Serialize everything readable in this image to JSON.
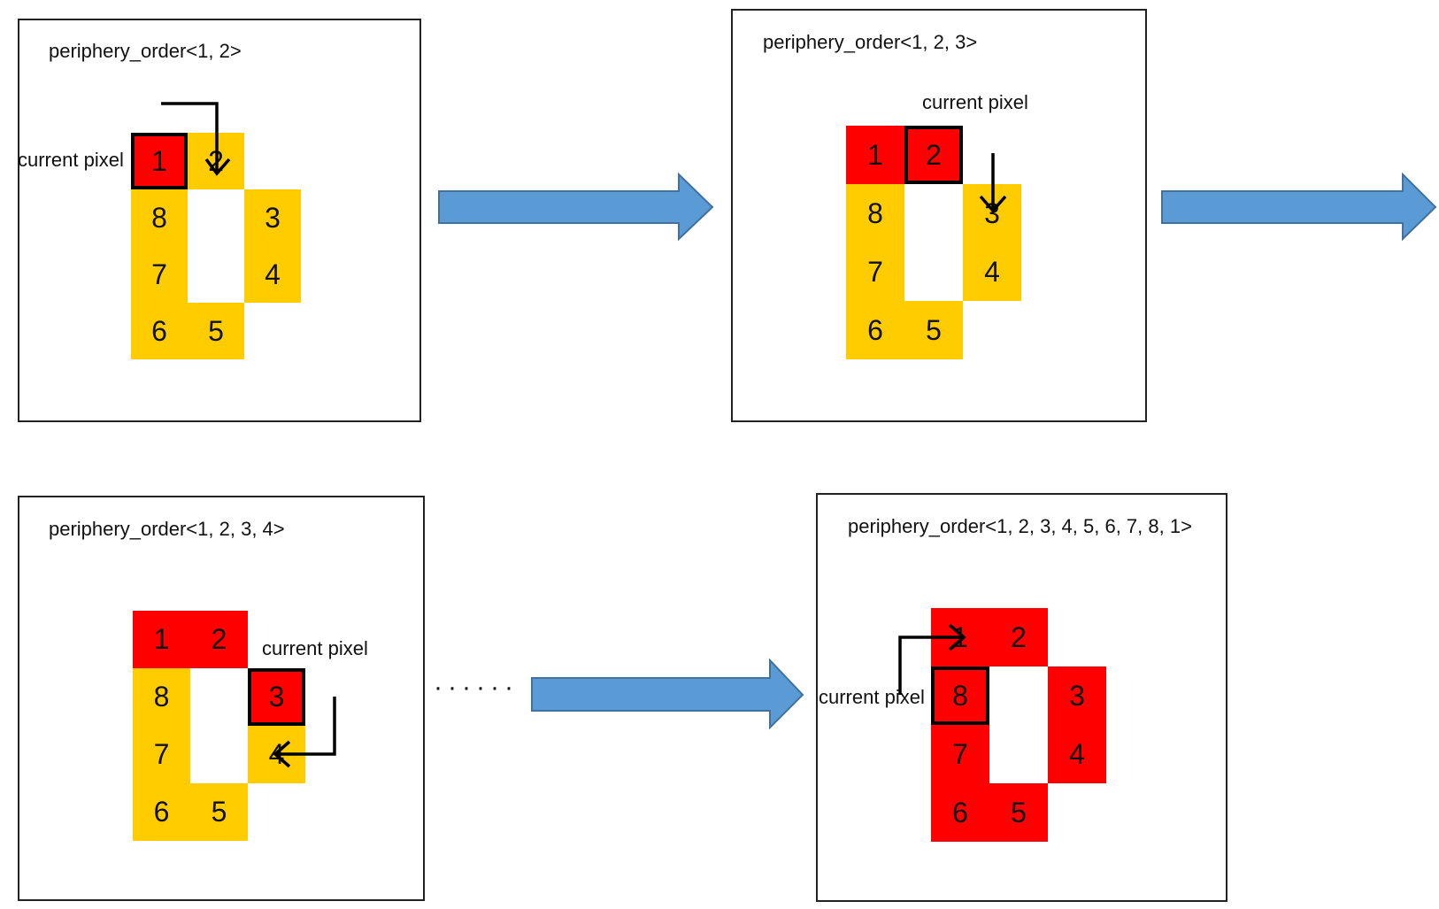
{
  "colors": {
    "visited": "#ff0000",
    "pending": "#ffcc00",
    "flow_arrow": "#5b9bd5",
    "flow_arrow_border": "#41719c"
  },
  "current_label": "current pixel",
  "ellipsis": "······",
  "panels": [
    {
      "order_label": "periphery_order<1, 2>",
      "cells": [
        {
          "n": "1",
          "state": "visited",
          "current": true
        },
        {
          "n": "2",
          "state": "pending",
          "current": false
        },
        {
          "n": "3",
          "state": "pending",
          "current": false
        },
        {
          "n": "4",
          "state": "pending",
          "current": false
        },
        {
          "n": "5",
          "state": "pending",
          "current": false
        },
        {
          "n": "6",
          "state": "pending",
          "current": false
        },
        {
          "n": "7",
          "state": "pending",
          "current": false
        },
        {
          "n": "8",
          "state": "pending",
          "current": false
        }
      ]
    },
    {
      "order_label": "periphery_order<1, 2, 3>",
      "cells": [
        {
          "n": "1",
          "state": "visited",
          "current": false
        },
        {
          "n": "2",
          "state": "visited",
          "current": true
        },
        {
          "n": "3",
          "state": "pending",
          "current": false
        },
        {
          "n": "4",
          "state": "pending",
          "current": false
        },
        {
          "n": "5",
          "state": "pending",
          "current": false
        },
        {
          "n": "6",
          "state": "pending",
          "current": false
        },
        {
          "n": "7",
          "state": "pending",
          "current": false
        },
        {
          "n": "8",
          "state": "pending",
          "current": false
        }
      ]
    },
    {
      "order_label": "periphery_order<1, 2, 3, 4>",
      "cells": [
        {
          "n": "1",
          "state": "visited",
          "current": false
        },
        {
          "n": "2",
          "state": "visited",
          "current": false
        },
        {
          "n": "3",
          "state": "visited",
          "current": true
        },
        {
          "n": "4",
          "state": "pending",
          "current": false
        },
        {
          "n": "5",
          "state": "pending",
          "current": false
        },
        {
          "n": "6",
          "state": "pending",
          "current": false
        },
        {
          "n": "7",
          "state": "pending",
          "current": false
        },
        {
          "n": "8",
          "state": "pending",
          "current": false
        }
      ]
    },
    {
      "order_label": "periphery_order<1, 2, 3, 4, 5, 6, 7, 8, 1>",
      "cells": [
        {
          "n": "1",
          "state": "visited",
          "current": false
        },
        {
          "n": "2",
          "state": "visited",
          "current": false
        },
        {
          "n": "3",
          "state": "visited",
          "current": false
        },
        {
          "n": "4",
          "state": "visited",
          "current": false
        },
        {
          "n": "5",
          "state": "visited",
          "current": false
        },
        {
          "n": "6",
          "state": "visited",
          "current": false
        },
        {
          "n": "7",
          "state": "visited",
          "current": false
        },
        {
          "n": "8",
          "state": "visited",
          "current": true
        }
      ]
    }
  ]
}
